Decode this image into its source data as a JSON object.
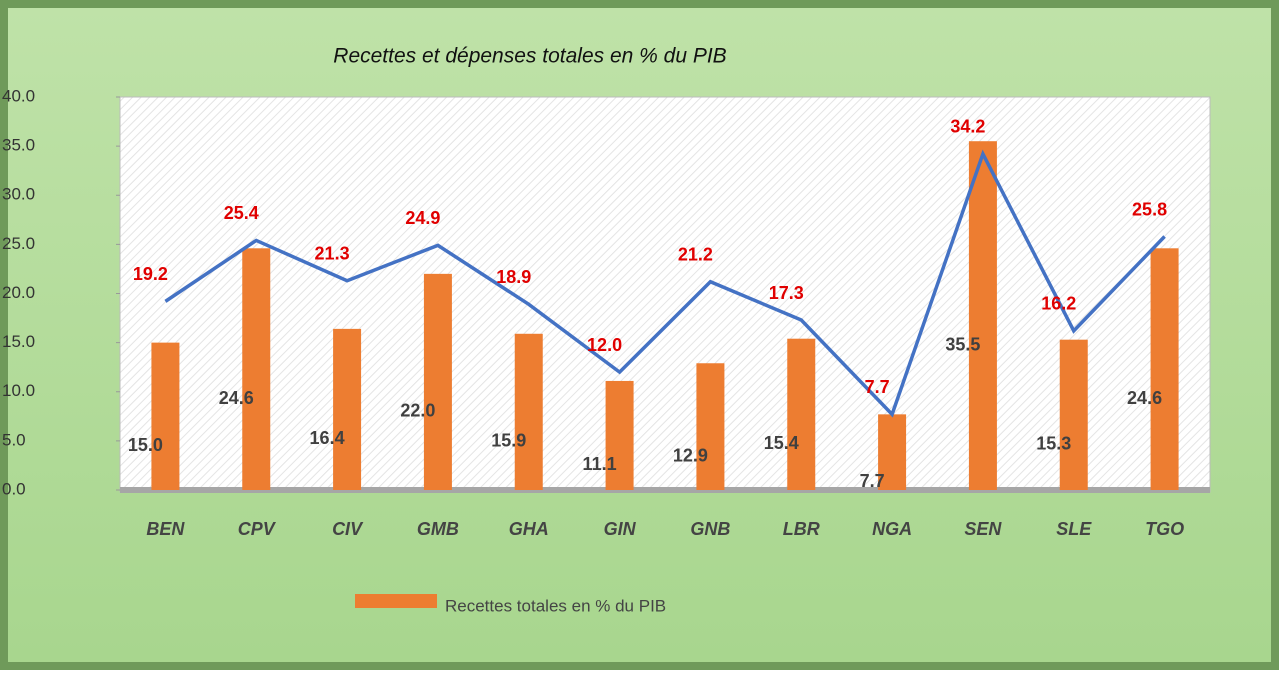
{
  "chart_data": {
    "type": "bar_line",
    "title": "Recettes et dépenses totales en % du PIB",
    "categories": [
      "BEN",
      "CPV",
      "CIV",
      "GMB",
      "GHA",
      "GIN",
      "GNB",
      "LBR",
      "NGA",
      "SEN",
      "SLE",
      "TGO"
    ],
    "series": [
      {
        "name": "Recettes totales en % du PIB",
        "type": "bar",
        "color": "#ed7d31",
        "values": [
          15.0,
          24.6,
          16.4,
          22.0,
          15.9,
          11.1,
          12.9,
          15.4,
          7.7,
          35.5,
          15.3,
          24.6
        ],
        "value_labels": [
          "15.0",
          "24.6",
          "16.4",
          "22.0",
          "15.9",
          "11.1",
          "12.9",
          "15.4",
          "7.7",
          "35.5",
          "15.3",
          "24.6"
        ]
      },
      {
        "type": "line",
        "color": "#4472c4",
        "values": [
          19.2,
          25.4,
          21.3,
          24.9,
          18.9,
          12.0,
          21.2,
          17.3,
          7.7,
          34.2,
          16.2,
          25.8
        ],
        "value_labels": [
          "19.2",
          "25.4",
          "21.3",
          "24.9",
          "18.9",
          "12.0",
          "21.2",
          "17.3",
          "7.7",
          "34.2",
          "16.2",
          "25.8"
        ]
      }
    ],
    "ylim": [
      0,
      40
    ],
    "yticks": [
      {
        "value": 0,
        "label": "0.0"
      },
      {
        "value": 5,
        "label": "5.0"
      },
      {
        "value": 10,
        "label": "10.0"
      },
      {
        "value": 15,
        "label": "15.0"
      },
      {
        "value": 20,
        "label": "20.0"
      },
      {
        "value": 25,
        "label": "25.0"
      },
      {
        "value": 30,
        "label": "30.0"
      },
      {
        "value": 35,
        "label": "35.0"
      },
      {
        "value": 40,
        "label": "40.0"
      }
    ],
    "legend": "bottom"
  }
}
